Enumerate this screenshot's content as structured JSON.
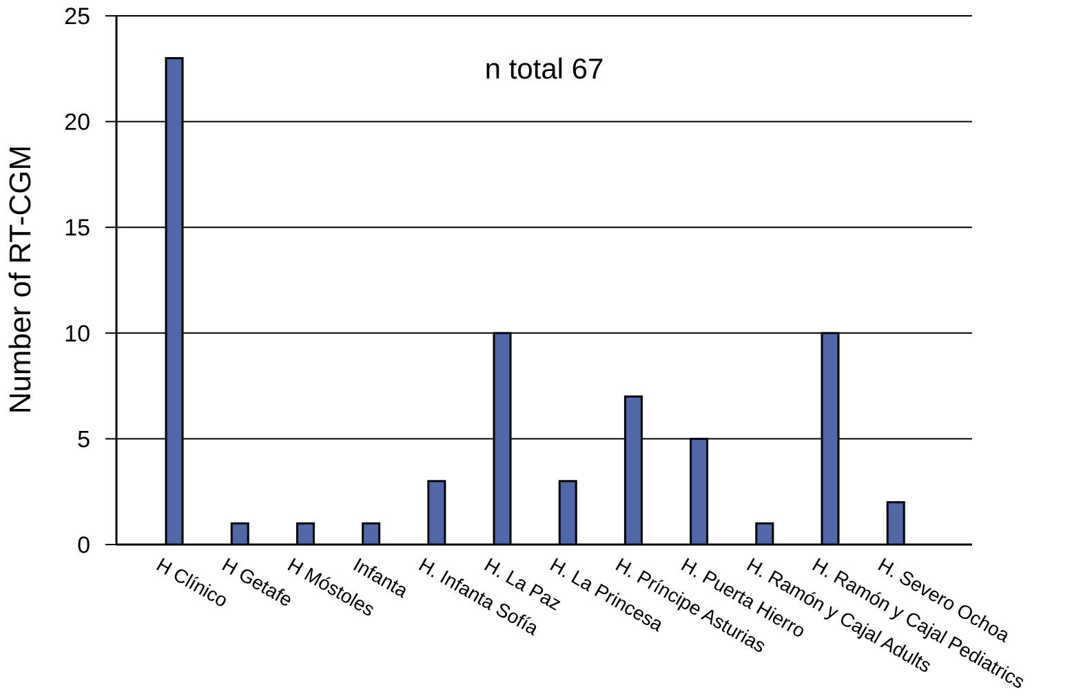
{
  "chart_data": {
    "type": "bar",
    "title": "",
    "xlabel": "",
    "ylabel": "Number of RT-CGM",
    "annotation": "n total 67",
    "ylim": [
      0,
      25
    ],
    "yticks": [
      0,
      5,
      10,
      15,
      20,
      25
    ],
    "grid": true,
    "legend": "none",
    "categories": [
      "H Clínico",
      "H Getafe",
      "H Móstoles",
      "Infanta",
      "H. Infanta Sofía",
      "H. La Paz",
      "H. La Princesa",
      "H. Príncipe Asturias",
      "H. Puerta Hierro",
      "H. Ramón y Cajal Adults",
      "H. Ramón y Cajal Pediatrics",
      "H. Severo Ochoa"
    ],
    "values": [
      23,
      1,
      1,
      1,
      3,
      10,
      3,
      7,
      5,
      1,
      10,
      2
    ],
    "bar_color": "#5068a8",
    "bar_stroke": "#000000"
  }
}
